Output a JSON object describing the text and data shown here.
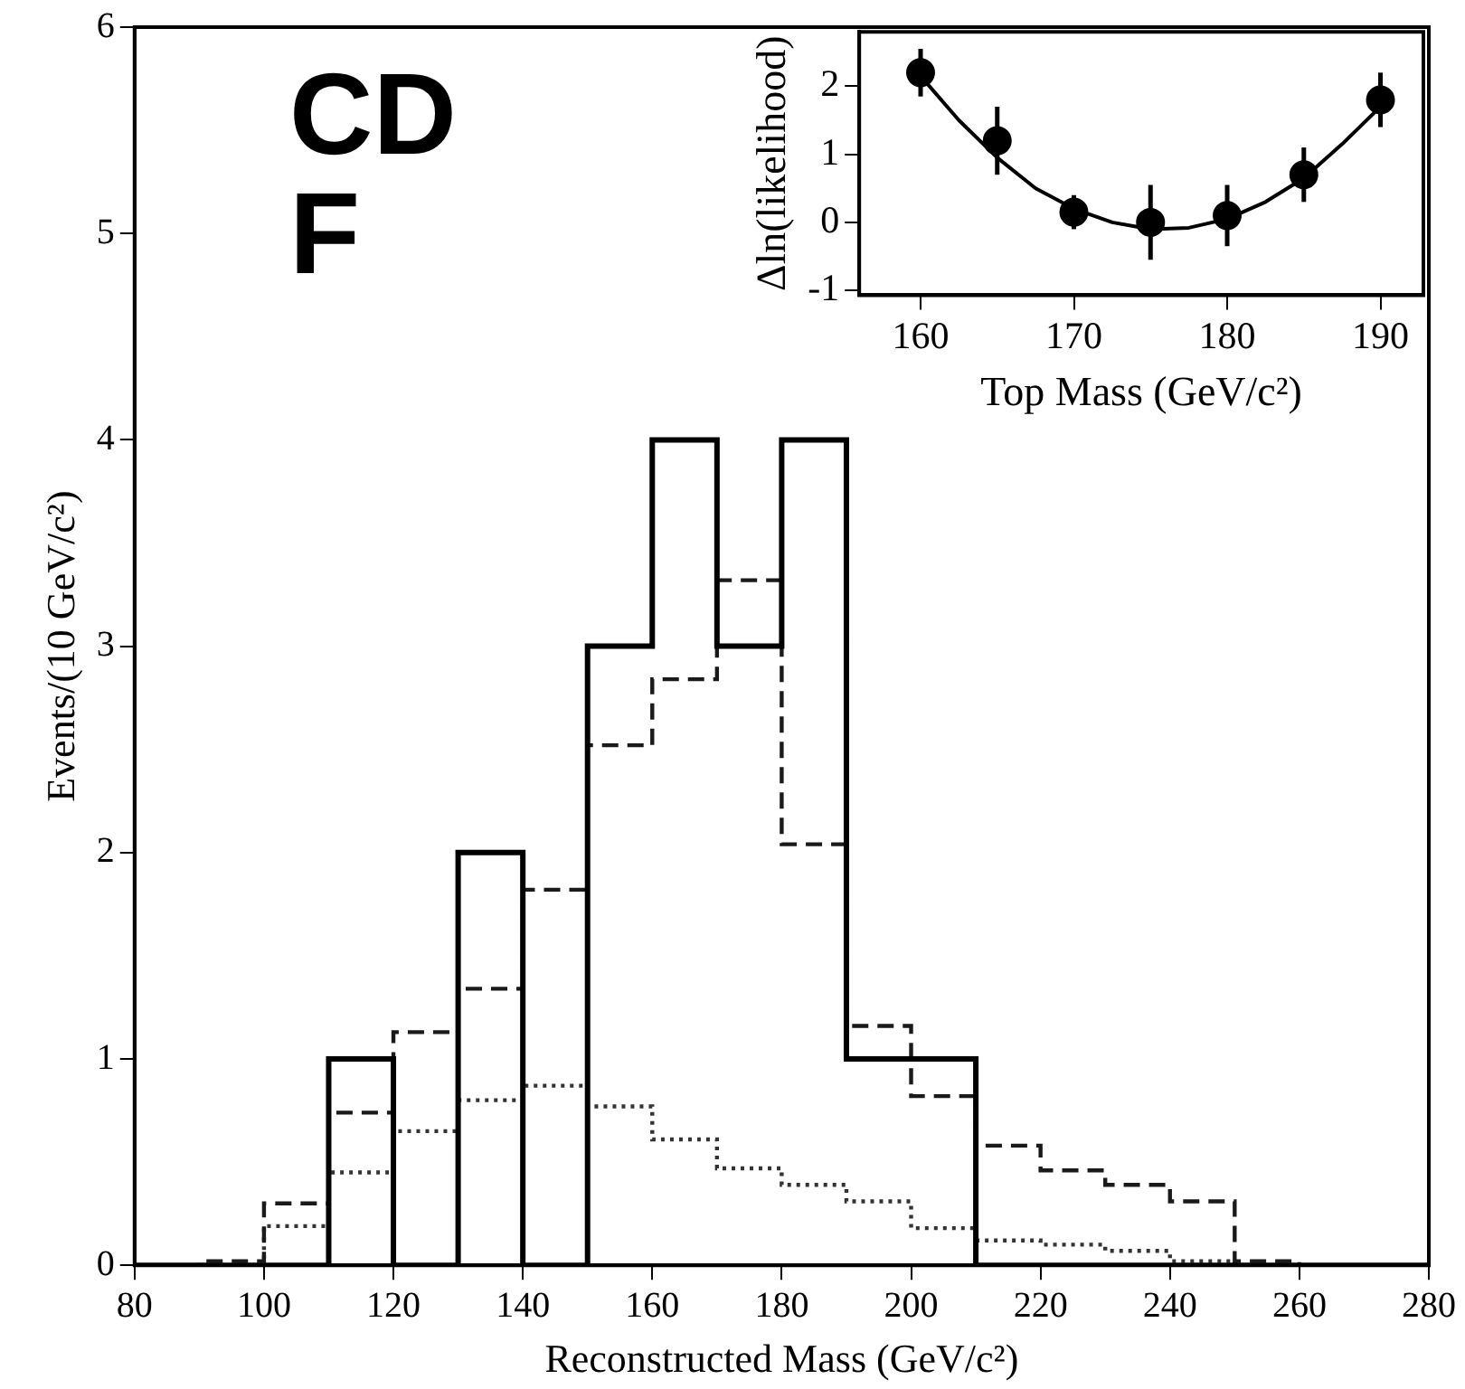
{
  "chart_data": [
    {
      "type": "histogram",
      "xlabel": "Reconstructed Mass (GeV/c²)",
      "ylabel": "Events/(10 GeV/c²)",
      "annotations": [
        "CDF"
      ],
      "bins": [
        80,
        90,
        100,
        110,
        120,
        130,
        140,
        150,
        160,
        170,
        180,
        190,
        200,
        210,
        220,
        230,
        240,
        250,
        260,
        270,
        280
      ],
      "series": [
        {
          "color": "#000000",
          "line_style": "solid",
          "values": [
            0,
            0,
            0,
            1,
            0,
            2,
            0,
            3,
            4,
            3,
            4,
            1,
            1,
            0,
            0,
            0,
            0,
            0,
            0,
            0
          ]
        },
        {
          "color": "#1a1a1a",
          "line_style": "dashed",
          "values": [
            0,
            0.02,
            0.3,
            0.74,
            1.13,
            1.34,
            1.82,
            2.52,
            2.84,
            3.32,
            2.04,
            1.16,
            0.82,
            0.58,
            0.46,
            0.39,
            0.31,
            0.02,
            0,
            0
          ]
        },
        {
          "color": "#333333",
          "line_style": "dotted",
          "values": [
            0,
            0,
            0.19,
            0.45,
            0.65,
            0.8,
            0.87,
            0.77,
            0.61,
            0.47,
            0.39,
            0.31,
            0.18,
            0.12,
            0.1,
            0.07,
            0.02,
            0,
            0,
            0
          ]
        }
      ],
      "xlim": [
        80,
        280
      ],
      "xticks": [
        80,
        100,
        120,
        140,
        160,
        180,
        200,
        220,
        240,
        260,
        280
      ],
      "ylim": [
        0,
        6
      ],
      "yticks": [
        0,
        1,
        2,
        3,
        4,
        5,
        6
      ],
      "grid": false,
      "legend": false
    },
    {
      "type": "scatter",
      "xlabel": "Top Mass (GeV/c²)",
      "ylabel": "Δln(likelihood)",
      "marker": "circle",
      "x": [
        160,
        165,
        170,
        175,
        180,
        185,
        190
      ],
      "series": [
        {
          "type": "scatter",
          "color": "#000000",
          "values": [
            2.2,
            1.2,
            0.15,
            0,
            0.1,
            0.7,
            1.8
          ],
          "errors": [
            0.35,
            0.5,
            0.25,
            0.55,
            0.45,
            0.4,
            0.4
          ]
        },
        {
          "type": "line",
          "color": "#000000",
          "marker": "none",
          "x": [
            160,
            162.5,
            165,
            167.5,
            170,
            172.5,
            175,
            177.5,
            180,
            182.5,
            185,
            187.5,
            190
          ],
          "values": [
            2.15,
            1.5,
            0.95,
            0.5,
            0.2,
            0,
            -0.1,
            -0.08,
            0.05,
            0.3,
            0.65,
            1.15,
            1.7
          ]
        }
      ],
      "xlim": [
        156,
        192.8
      ],
      "xticks": [
        160,
        170,
        180,
        190
      ],
      "ylim": [
        -1.07,
        2.8
      ],
      "yticks": [
        -1,
        0,
        1,
        2
      ],
      "grid": false,
      "legend": false
    }
  ]
}
